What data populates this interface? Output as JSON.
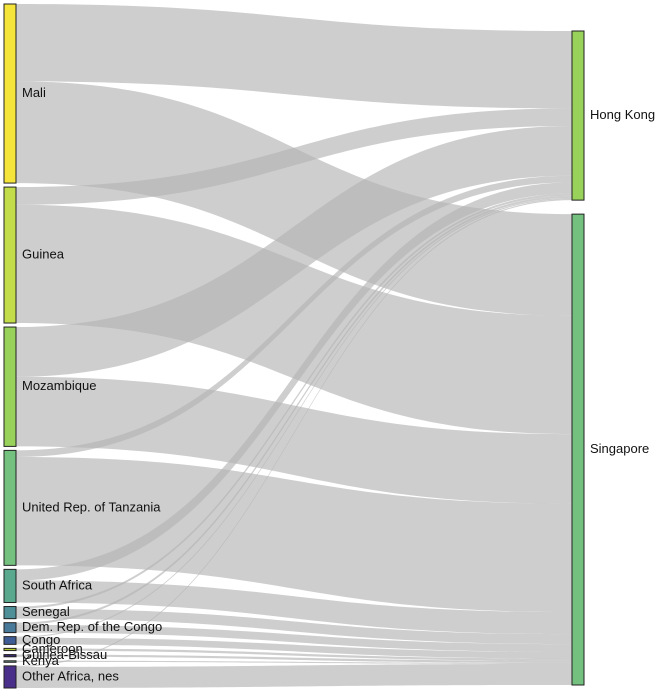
{
  "chart_data": {
    "type": "sankey",
    "title": "",
    "sources": [
      {
        "name": "Mali",
        "color": "#f5e43a"
      },
      {
        "name": "Guinea",
        "color": "#c3dc4a"
      },
      {
        "name": "Mozambique",
        "color": "#98d25a"
      },
      {
        "name": "United Rep. of Tanzania",
        "color": "#73c07f"
      },
      {
        "name": "South Africa",
        "color": "#5aa98e"
      },
      {
        "name": "Senegal",
        "color": "#4e8f98"
      },
      {
        "name": "Dem. Rep. of the Congo",
        "color": "#4a7a9a"
      },
      {
        "name": "Congo",
        "color": "#3e5c96"
      },
      {
        "name": "Cameroon",
        "color": "#b5c832"
      },
      {
        "name": "Guinea-Bissau",
        "color": "#3a2a6e"
      },
      {
        "name": "Kenya",
        "color": "#6f9a86"
      },
      {
        "name": "Other Africa, nes",
        "color": "#4a2f8a"
      }
    ],
    "targets": [
      {
        "name": "Hong Kong",
        "color": "#98d25a"
      },
      {
        "name": "Singapore",
        "color": "#73c07f"
      }
    ],
    "links": [
      {
        "source": "Mali",
        "target": "Hong Kong",
        "value": 70
      },
      {
        "source": "Mali",
        "target": "Singapore",
        "value": 92
      },
      {
        "source": "Guinea",
        "target": "Hong Kong",
        "value": 16
      },
      {
        "source": "Guinea",
        "target": "Singapore",
        "value": 107
      },
      {
        "source": "Mozambique",
        "target": "Hong Kong",
        "value": 45
      },
      {
        "source": "Mozambique",
        "target": "Singapore",
        "value": 63
      },
      {
        "source": "United Rep. of Tanzania",
        "target": "Hong Kong",
        "value": 6
      },
      {
        "source": "United Rep. of Tanzania",
        "target": "Singapore",
        "value": 98
      },
      {
        "source": "South Africa",
        "target": "Hong Kong",
        "value": 10
      },
      {
        "source": "South Africa",
        "target": "Singapore",
        "value": 20
      },
      {
        "source": "Senegal",
        "target": "Hong Kong",
        "value": 2
      },
      {
        "source": "Senegal",
        "target": "Singapore",
        "value": 9
      },
      {
        "source": "Dem. Rep. of the Congo",
        "target": "Hong Kong",
        "value": 2
      },
      {
        "source": "Dem. Rep. of the Congo",
        "target": "Singapore",
        "value": 7
      },
      {
        "source": "Congo",
        "target": "Hong Kong",
        "value": 1
      },
      {
        "source": "Congo",
        "target": "Singapore",
        "value": 6
      },
      {
        "source": "Cameroon",
        "target": "Singapore",
        "value": 2
      },
      {
        "source": "Guinea-Bissau",
        "target": "Singapore",
        "value": 2
      },
      {
        "source": "Kenya",
        "target": "Singapore",
        "value": 1
      },
      {
        "source": "Other Africa, nes",
        "target": "Hong Kong",
        "value": 1
      },
      {
        "source": "Other Africa, nes",
        "target": "Singapore",
        "value": 19
      }
    ],
    "legend": "none",
    "grid": false
  }
}
